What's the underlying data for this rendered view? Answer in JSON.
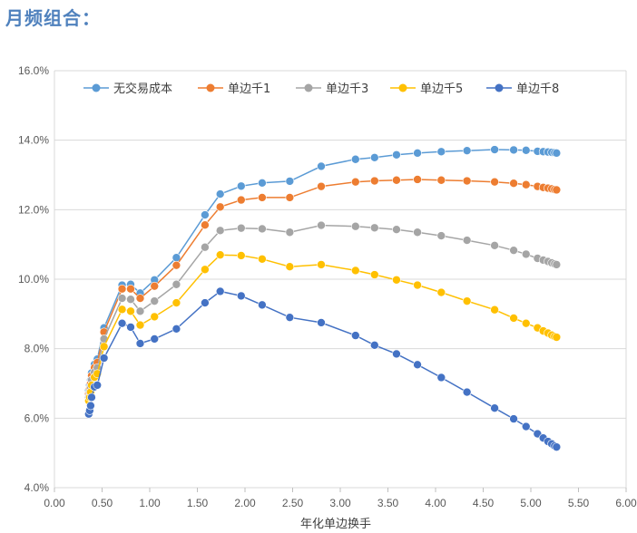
{
  "heading": "月频组合：",
  "chart_data": {
    "type": "line",
    "xlabel": "年化单边换手",
    "ylabel": "",
    "xlim": [
      0,
      6
    ],
    "ylim": [
      0.04,
      0.16
    ],
    "x_ticks": [
      "0.00",
      "0.50",
      "1.00",
      "1.50",
      "2.00",
      "2.50",
      "3.00",
      "3.50",
      "4.00",
      "4.50",
      "5.00",
      "5.50",
      "6.00"
    ],
    "y_ticks": [
      "4.0%",
      "6.0%",
      "8.0%",
      "10.0%",
      "12.0%",
      "14.0%",
      "16.0%"
    ],
    "grid": "horizontal",
    "legend_position": "top",
    "x": [
      0.36,
      0.37,
      0.38,
      0.39,
      0.42,
      0.45,
      0.52,
      0.71,
      0.8,
      0.9,
      1.05,
      1.28,
      1.58,
      1.74,
      1.96,
      2.18,
      2.47,
      2.8,
      3.16,
      3.36,
      3.59,
      3.81,
      4.06,
      4.33,
      4.62,
      4.82,
      4.95,
      5.07,
      5.13,
      5.18,
      5.22,
      5.25,
      5.27
    ],
    "series": [
      {
        "name": "无交易成本",
        "color": "#5b9bd5",
        "values": [
          0.068,
          0.0695,
          0.071,
          0.073,
          0.0755,
          0.077,
          0.086,
          0.0983,
          0.0985,
          0.096,
          0.0998,
          0.1062,
          0.1185,
          0.1245,
          0.1268,
          0.1277,
          0.1282,
          0.1325,
          0.1345,
          0.135,
          0.1358,
          0.1363,
          0.1367,
          0.137,
          0.1373,
          0.1372,
          0.1371,
          0.1368,
          0.1367,
          0.1366,
          0.1365,
          0.1364,
          0.1363
        ]
      },
      {
        "name": "单边千1",
        "color": "#ed7d31",
        "values": [
          0.067,
          0.0685,
          0.07,
          0.0722,
          0.0745,
          0.076,
          0.0848,
          0.0972,
          0.0972,
          0.0945,
          0.098,
          0.104,
          0.1156,
          0.1208,
          0.1228,
          0.1235,
          0.1235,
          0.1267,
          0.128,
          0.1283,
          0.1285,
          0.1287,
          0.1285,
          0.1283,
          0.128,
          0.1276,
          0.1272,
          0.1267,
          0.1264,
          0.1262,
          0.126,
          0.1258,
          0.1257
        ]
      },
      {
        "name": "单边千3",
        "color": "#a5a5a5",
        "values": [
          0.066,
          0.0675,
          0.069,
          0.071,
          0.0732,
          0.0745,
          0.0828,
          0.0945,
          0.0942,
          0.0908,
          0.0937,
          0.0985,
          0.1092,
          0.114,
          0.1147,
          0.1145,
          0.1135,
          0.1155,
          0.1152,
          0.1148,
          0.1143,
          0.1135,
          0.1125,
          0.1112,
          0.1097,
          0.1083,
          0.1072,
          0.106,
          0.1055,
          0.1051,
          0.1047,
          0.1044,
          0.1042
        ]
      },
      {
        "name": "单边千5",
        "color": "#ffc000",
        "values": [
          0.065,
          0.066,
          0.0675,
          0.0695,
          0.0718,
          0.0728,
          0.0806,
          0.0913,
          0.0908,
          0.0868,
          0.0892,
          0.0932,
          0.1028,
          0.107,
          0.1068,
          0.1058,
          0.1036,
          0.1042,
          0.1025,
          0.1013,
          0.0998,
          0.0983,
          0.0962,
          0.0937,
          0.0912,
          0.0888,
          0.0873,
          0.086,
          0.0851,
          0.0845,
          0.0839,
          0.0835,
          0.0833
        ]
      },
      {
        "name": "单边千8",
        "color": "#4472c4",
        "values": [
          0.0612,
          0.0622,
          0.0636,
          0.066,
          0.069,
          0.0695,
          0.0773,
          0.0873,
          0.0862,
          0.0815,
          0.0828,
          0.0857,
          0.0932,
          0.0965,
          0.0952,
          0.0926,
          0.089,
          0.0875,
          0.0838,
          0.081,
          0.0785,
          0.0754,
          0.0717,
          0.0675,
          0.0629,
          0.0598,
          0.0576,
          0.0555,
          0.0543,
          0.0533,
          0.0526,
          0.052,
          0.0517
        ]
      }
    ]
  }
}
